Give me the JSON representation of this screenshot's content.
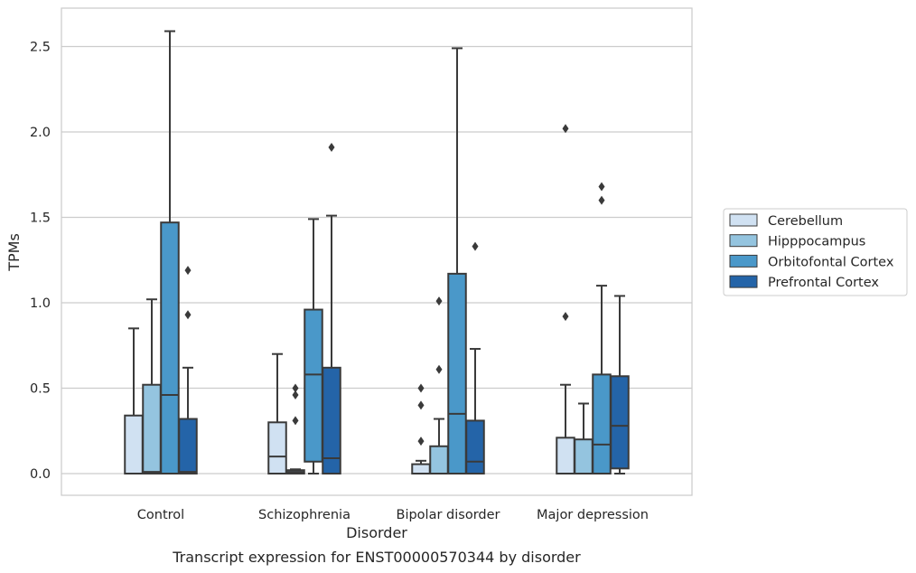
{
  "chart_data": {
    "type": "box",
    "title": "",
    "caption": "Transcript expression for ENST00000570344 by disorder",
    "xlabel": "Disorder",
    "ylabel": "TPMs",
    "ylim": [
      -0.12,
      2.72
    ],
    "yticks": [
      0.0,
      0.5,
      1.0,
      1.5,
      2.0,
      2.5
    ],
    "ytick_labels": [
      "0.0",
      "0.5",
      "1.0",
      "1.5",
      "2.0",
      "2.5"
    ],
    "grid": "horizontal",
    "legend_position": "right",
    "categories": [
      "Control",
      "Schizophrenia",
      "Bipolar disorder",
      "Major depression"
    ],
    "series": [
      {
        "name": "Cerebellum",
        "color": "#d0e1f2",
        "boxes": [
          {
            "whisker_low": 0.0,
            "q1": 0.0,
            "median": 0.0,
            "q3": 0.34,
            "whisker_high": 0.85,
            "outliers": []
          },
          {
            "whisker_low": 0.0,
            "q1": 0.0,
            "median": 0.1,
            "q3": 0.3,
            "whisker_high": 0.7,
            "outliers": []
          },
          {
            "whisker_low": 0.0,
            "q1": 0.0,
            "median": 0.0,
            "q3": 0.055,
            "whisker_high": 0.075,
            "outliers": [
              0.19,
              0.4,
              0.5
            ]
          },
          {
            "whisker_low": 0.0,
            "q1": 0.0,
            "median": 0.0,
            "q3": 0.21,
            "whisker_high": 0.52,
            "outliers": [
              0.92,
              2.02
            ]
          }
        ]
      },
      {
        "name": "Hipppocampus",
        "color": "#94c4df",
        "boxes": [
          {
            "whisker_low": 0.0,
            "q1": 0.0,
            "median": 0.01,
            "q3": 0.52,
            "whisker_high": 1.02,
            "outliers": []
          },
          {
            "whisker_low": 0.0,
            "q1": 0.0,
            "median": 0.01,
            "q3": 0.02,
            "whisker_high": 0.025,
            "outliers": [
              0.31,
              0.46,
              0.5
            ]
          },
          {
            "whisker_low": 0.0,
            "q1": 0.0,
            "median": 0.0,
            "q3": 0.16,
            "whisker_high": 0.32,
            "outliers": [
              0.61,
              1.01
            ]
          },
          {
            "whisker_low": 0.0,
            "q1": 0.0,
            "median": 0.0,
            "q3": 0.2,
            "whisker_high": 0.41,
            "outliers": []
          }
        ]
      },
      {
        "name": "Orbitofontal Cortex",
        "color": "#4a98c9",
        "boxes": [
          {
            "whisker_low": 0.0,
            "q1": 0.0,
            "median": 0.46,
            "q3": 1.47,
            "whisker_high": 2.59,
            "outliers": []
          },
          {
            "whisker_low": 0.0,
            "q1": 0.07,
            "median": 0.58,
            "q3": 0.96,
            "whisker_high": 1.49,
            "outliers": []
          },
          {
            "whisker_low": 0.0,
            "q1": 0.0,
            "median": 0.35,
            "q3": 1.17,
            "whisker_high": 2.49,
            "outliers": []
          },
          {
            "whisker_low": 0.0,
            "q1": 0.0,
            "median": 0.17,
            "q3": 0.58,
            "whisker_high": 1.1,
            "outliers": [
              1.6,
              1.68
            ]
          }
        ]
      },
      {
        "name": "Prefrontal Cortex",
        "color": "#2464a8",
        "boxes": [
          {
            "whisker_low": 0.0,
            "q1": 0.0,
            "median": 0.01,
            "q3": 0.32,
            "whisker_high": 0.62,
            "outliers": [
              0.93,
              1.19
            ]
          },
          {
            "whisker_low": 0.0,
            "q1": 0.0,
            "median": 0.09,
            "q3": 0.62,
            "whisker_high": 1.51,
            "outliers": [
              1.91
            ]
          },
          {
            "whisker_low": 0.0,
            "q1": 0.0,
            "median": 0.07,
            "q3": 0.31,
            "whisker_high": 0.73,
            "outliers": [
              1.33
            ]
          },
          {
            "whisker_low": 0.0,
            "q1": 0.03,
            "median": 0.28,
            "q3": 0.57,
            "whisker_high": 1.04,
            "outliers": []
          }
        ]
      }
    ]
  }
}
